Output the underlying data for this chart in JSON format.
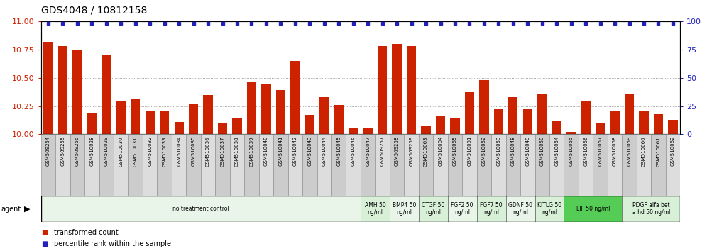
{
  "title": "GDS4048 / 10812158",
  "samples": [
    "GSM509254",
    "GSM509255",
    "GSM509256",
    "GSM510028",
    "GSM510029",
    "GSM510030",
    "GSM510031",
    "GSM510032",
    "GSM510033",
    "GSM510034",
    "GSM510035",
    "GSM510036",
    "GSM510037",
    "GSM510038",
    "GSM510039",
    "GSM510040",
    "GSM510041",
    "GSM510042",
    "GSM510043",
    "GSM510044",
    "GSM510045",
    "GSM510046",
    "GSM510047",
    "GSM509257",
    "GSM509258",
    "GSM509259",
    "GSM510063",
    "GSM510064",
    "GSM510065",
    "GSM510051",
    "GSM510052",
    "GSM510053",
    "GSM510048",
    "GSM510049",
    "GSM510050",
    "GSM510054",
    "GSM510055",
    "GSM510056",
    "GSM510057",
    "GSM510058",
    "GSM510059",
    "GSM510060",
    "GSM510061",
    "GSM510062"
  ],
  "bar_values": [
    10.82,
    10.78,
    10.75,
    10.19,
    10.7,
    10.3,
    10.31,
    10.21,
    10.21,
    10.11,
    10.27,
    10.35,
    10.1,
    10.14,
    10.46,
    10.44,
    10.39,
    10.65,
    10.17,
    10.33,
    10.26,
    10.05,
    10.06,
    10.78,
    10.8,
    10.78,
    10.07,
    10.16,
    10.14,
    10.37,
    10.48,
    10.22,
    10.33,
    10.22,
    10.36,
    10.12,
    10.02,
    10.3,
    10.1,
    10.21,
    10.36,
    10.21,
    10.18,
    10.13
  ],
  "percentile_values": [
    98,
    98,
    98,
    98,
    98,
    98,
    98,
    98,
    98,
    98,
    98,
    98,
    98,
    98,
    98,
    98,
    98,
    98,
    98,
    98,
    98,
    98,
    98,
    98,
    98,
    98,
    98,
    98,
    98,
    98,
    98,
    98,
    98,
    98,
    98,
    98,
    98,
    98,
    98,
    98,
    98,
    98,
    98,
    98
  ],
  "ylim_left": [
    10.0,
    11.0
  ],
  "ylim_right": [
    0,
    100
  ],
  "yticks_left": [
    10.0,
    10.25,
    10.5,
    10.75,
    11.0
  ],
  "yticks_right": [
    0,
    25,
    50,
    75,
    100
  ],
  "bar_color": "#cc2200",
  "dot_color": "#2222bb",
  "agent_groups": [
    {
      "label": "no treatment control",
      "start": 0,
      "end": 22,
      "color": "#e8f5e8",
      "bright": false
    },
    {
      "label": "AMH 50\nng/ml",
      "start": 22,
      "end": 24,
      "color": "#d8f0d8",
      "bright": false
    },
    {
      "label": "BMP4 50\nng/ml",
      "start": 24,
      "end": 26,
      "color": "#e8f5e8",
      "bright": false
    },
    {
      "label": "CTGF 50\nng/ml",
      "start": 26,
      "end": 28,
      "color": "#d8f0d8",
      "bright": false
    },
    {
      "label": "FGF2 50\nng/ml",
      "start": 28,
      "end": 30,
      "color": "#e8f5e8",
      "bright": false
    },
    {
      "label": "FGF7 50\nng/ml",
      "start": 30,
      "end": 32,
      "color": "#d8f0d8",
      "bright": false
    },
    {
      "label": "GDNF 50\nng/ml",
      "start": 32,
      "end": 34,
      "color": "#e8f5e8",
      "bright": false
    },
    {
      "label": "KITLG 50\nng/ml",
      "start": 34,
      "end": 36,
      "color": "#d8f0d8",
      "bright": false
    },
    {
      "label": "LIF 50 ng/ml",
      "start": 36,
      "end": 40,
      "color": "#55cc55",
      "bright": true
    },
    {
      "label": "PDGF alfa bet\na hd 50 ng/ml",
      "start": 40,
      "end": 44,
      "color": "#d8f0d8",
      "bright": false
    }
  ]
}
